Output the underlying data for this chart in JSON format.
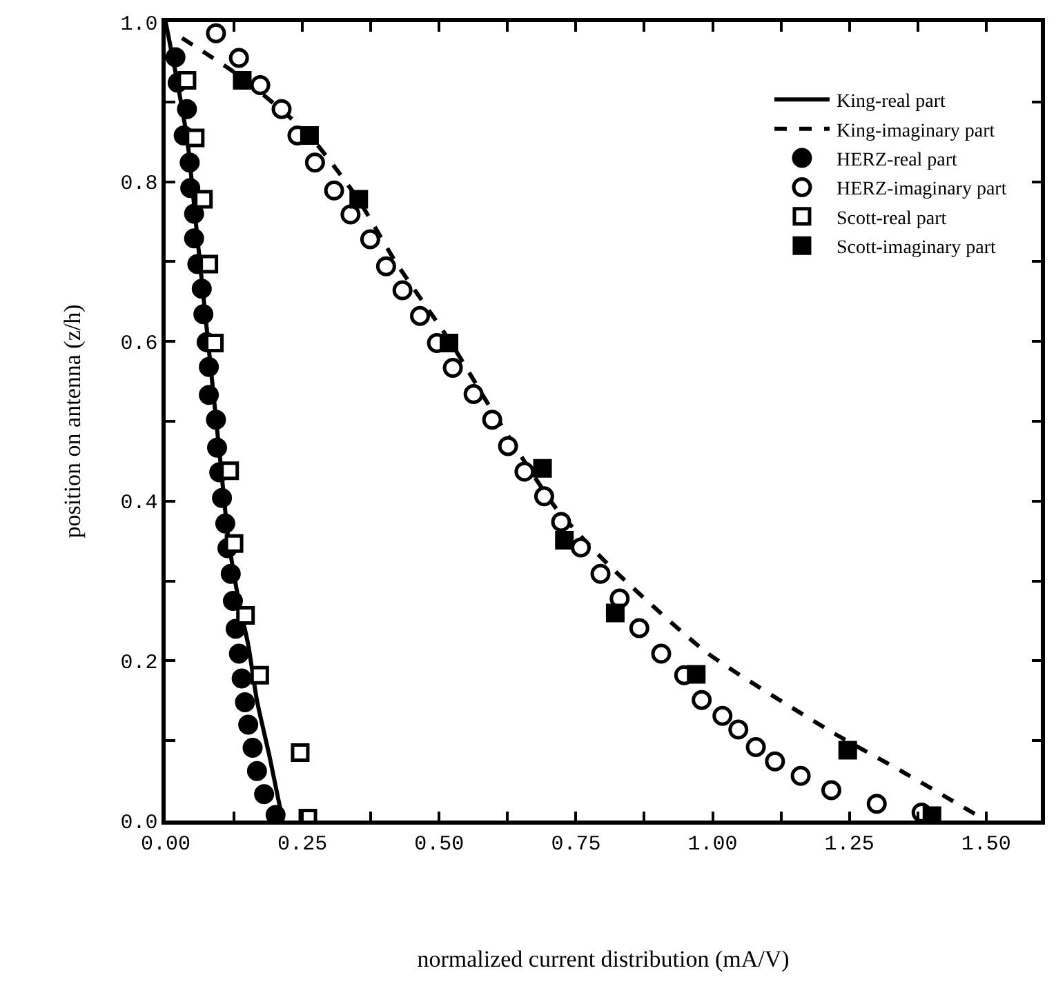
{
  "chart_data": {
    "type": "scatter",
    "xlabel": "normalized current distribution (mA/V)",
    "ylabel": "position on antenna (z/h)",
    "xlim": [
      0,
      1.6
    ],
    "ylim": [
      0,
      1.0
    ],
    "xticks": [
      {
        "value": 0,
        "label": "0.00"
      },
      {
        "value": 0.125,
        "label": null
      },
      {
        "value": 0.25,
        "label": "0.25"
      },
      {
        "value": 0.375,
        "label": null
      },
      {
        "value": 0.5,
        "label": "0.50"
      },
      {
        "value": 0.625,
        "label": null
      },
      {
        "value": 0.75,
        "label": "0.75"
      },
      {
        "value": 0.875,
        "label": null
      },
      {
        "value": 1.0,
        "label": "1.00"
      },
      {
        "value": 1.125,
        "label": null
      },
      {
        "value": 1.25,
        "label": "1.25"
      },
      {
        "value": 1.375,
        "label": null
      },
      {
        "value": 1.5,
        "label": "1.50"
      }
    ],
    "yticks": [
      {
        "value": 0,
        "label": "0.0"
      },
      {
        "value": 0.1,
        "label": null
      },
      {
        "value": 0.2,
        "label": "0.2"
      },
      {
        "value": 0.3,
        "label": null
      },
      {
        "value": 0.4,
        "label": "0.4"
      },
      {
        "value": 0.5,
        "label": null
      },
      {
        "value": 0.6,
        "label": "0.6"
      },
      {
        "value": 0.7,
        "label": null
      },
      {
        "value": 0.8,
        "label": "0.8"
      },
      {
        "value": 0.9,
        "label": null
      },
      {
        "value": 1.0,
        "label": "1.0"
      }
    ],
    "grid": false,
    "legend": "top right",
    "series": [
      {
        "name": "King-real part",
        "type": "line",
        "line_style": "solid",
        "marker": "none",
        "color": "#000000",
        "x": [
          0,
          0.02,
          0.04,
          0.055,
          0.07,
          0.085,
          0.1,
          0.115,
          0.135,
          0.151,
          0.167,
          0.19,
          0.214
        ],
        "values": [
          1.0,
          0.93,
          0.85,
          0.75,
          0.65,
          0.55,
          0.45,
          0.35,
          0.27,
          0.22,
          0.15,
          0.08,
          0.0
        ]
      },
      {
        "name": "King-imaginary part",
        "type": "line",
        "line_style": "dashed",
        "marker": "none",
        "color": "#000000",
        "x": [
          0.03,
          0.14,
          0.26,
          0.35,
          0.42,
          0.52,
          0.6,
          0.715,
          0.81,
          0.99,
          1.22,
          1.35,
          1.5
        ],
        "values": [
          0.98,
          0.93,
          0.86,
          0.78,
          0.7,
          0.6,
          0.51,
          0.39,
          0.32,
          0.21,
          0.11,
          0.06,
          0.0
        ]
      },
      {
        "name": "HERZ-real part",
        "marker": "circle",
        "color": "#000000",
        "x": [
          0.018,
          0.022,
          0.039,
          0.033,
          0.044,
          0.045,
          0.052,
          0.052,
          0.058,
          0.066,
          0.069,
          0.075,
          0.079,
          0.079,
          0.092,
          0.094,
          0.098,
          0.103,
          0.109,
          0.113,
          0.119,
          0.123,
          0.128,
          0.134,
          0.139,
          0.145,
          0.151,
          0.159,
          0.167,
          0.18,
          0.201
        ],
        "values": [
          0.956,
          0.924,
          0.891,
          0.858,
          0.824,
          0.792,
          0.76,
          0.729,
          0.697,
          0.666,
          0.634,
          0.599,
          0.568,
          0.533,
          0.502,
          0.467,
          0.436,
          0.404,
          0.372,
          0.341,
          0.309,
          0.275,
          0.24,
          0.209,
          0.178,
          0.148,
          0.12,
          0.091,
          0.062,
          0.033,
          0.007
        ]
      },
      {
        "name": "HERZ-imaginary part",
        "marker": "circle",
        "color": "#ffffff",
        "x": [
          0.092,
          0.134,
          0.173,
          0.212,
          0.241,
          0.273,
          0.308,
          0.338,
          0.374,
          0.403,
          0.433,
          0.465,
          0.496,
          0.525,
          0.563,
          0.597,
          0.626,
          0.656,
          0.692,
          0.723,
          0.759,
          0.795,
          0.83,
          0.866,
          0.906,
          0.948,
          0.98,
          1.018,
          1.047,
          1.079,
          1.114,
          1.161,
          1.217,
          1.3,
          1.382
        ],
        "values": [
          0.986,
          0.955,
          0.921,
          0.891,
          0.858,
          0.824,
          0.789,
          0.759,
          0.728,
          0.694,
          0.664,
          0.632,
          0.598,
          0.567,
          0.534,
          0.502,
          0.469,
          0.437,
          0.406,
          0.374,
          0.342,
          0.309,
          0.278,
          0.241,
          0.209,
          0.182,
          0.151,
          0.131,
          0.114,
          0.092,
          0.074,
          0.056,
          0.038,
          0.021,
          0.01
        ]
      },
      {
        "name": "Scott-real part",
        "marker": "square",
        "color": "#ffffff",
        "x": [
          0.039,
          0.054,
          0.069,
          0.079,
          0.089,
          0.117,
          0.125,
          0.146,
          0.172,
          0.246,
          0.26
        ],
        "values": [
          0.927,
          0.855,
          0.778,
          0.697,
          0.598,
          0.438,
          0.347,
          0.257,
          0.182,
          0.085,
          0.003
        ]
      },
      {
        "name": "Scott-imaginary part",
        "marker": "square",
        "color": "#000000",
        "x": [
          0.14,
          0.263,
          0.353,
          0.518,
          0.689,
          0.729,
          0.822,
          0.97,
          1.247,
          1.401
        ],
        "values": [
          0.927,
          0.858,
          0.778,
          0.598,
          0.441,
          0.351,
          0.26,
          0.183,
          0.088,
          0.006
        ]
      }
    ]
  }
}
